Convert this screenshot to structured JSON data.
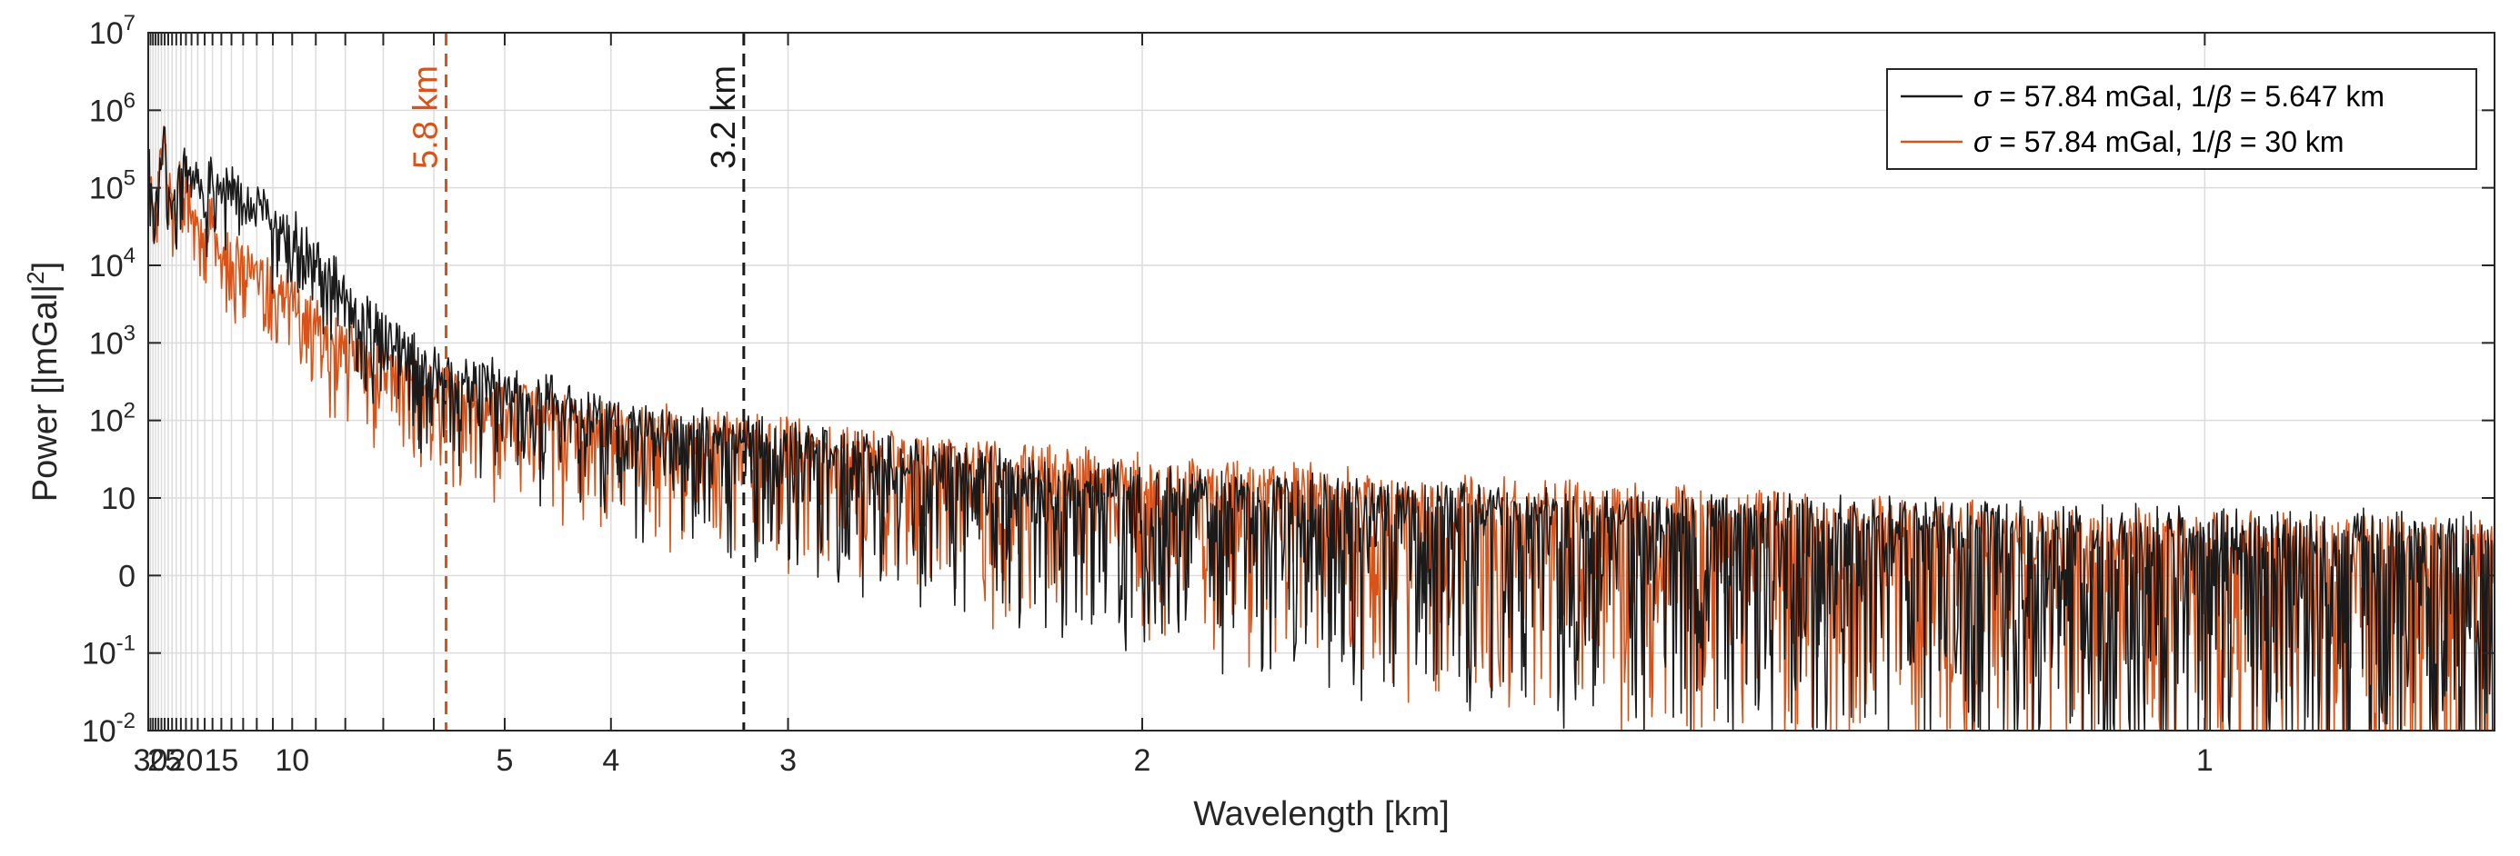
{
  "chart_data": {
    "type": "line",
    "title": "",
    "xlabel": "Wavelength [km]",
    "ylabel": "Power [|mGal|",
    "ylabel_superscript": "2",
    "ylabel_suffix": "]",
    "x_scale": "reciprocal (spatial frequency 1/λ)",
    "xlim": [
      31,
      0.88
    ],
    "x_ticks": [
      {
        "value": 30,
        "label": "30"
      },
      {
        "value": 25,
        "label": "25"
      },
      {
        "value": 20,
        "label": "20"
      },
      {
        "value": 15,
        "label": "15"
      },
      {
        "value": 10,
        "label": "10"
      },
      {
        "value": 5,
        "label": "5"
      },
      {
        "value": 4,
        "label": "4"
      },
      {
        "value": 3,
        "label": "3"
      },
      {
        "value": 2,
        "label": "2"
      },
      {
        "value": 1,
        "label": "1"
      }
    ],
    "x_minor_ticks": [
      29,
      28,
      27,
      26,
      24,
      23,
      22,
      21,
      19,
      18,
      17,
      16,
      14,
      13,
      12,
      11,
      9,
      8,
      7,
      6
    ],
    "y_scale": "log",
    "ylim_exponent": [
      -2,
      7
    ],
    "y_ticks": [
      {
        "exp": 7,
        "base": "10",
        "sup": "7"
      },
      {
        "exp": 6,
        "base": "10",
        "sup": "6"
      },
      {
        "exp": 5,
        "base": "10",
        "sup": "5"
      },
      {
        "exp": 4,
        "base": "10",
        "sup": "4"
      },
      {
        "exp": 3,
        "base": "10",
        "sup": "3"
      },
      {
        "exp": 2,
        "base": "10",
        "sup": "2"
      },
      {
        "exp": 1,
        "base": "10",
        "sup": ""
      },
      {
        "exp": 0,
        "base": "0",
        "sup": ""
      },
      {
        "exp": -1,
        "base": "10",
        "sup": "-1"
      },
      {
        "exp": -2,
        "base": "10",
        "sup": "-2"
      }
    ],
    "grid": true,
    "legend_position": "top-right",
    "series": [
      {
        "name": "σ = 57.84 mGal, 1/β = 5.647 km",
        "legend_parts": [
          "σ",
          " = 57.84 mGal, 1/",
          "β",
          " = 5.647 km"
        ],
        "color": "#1a1a1a",
        "note": "noisy power spectrum; approximate envelope (wavelength km, log10 power) sampled from the figure",
        "envelope": [
          [
            31,
            5.9
          ],
          [
            29,
            5.3
          ],
          [
            28,
            5.2
          ],
          [
            27,
            5.4
          ],
          [
            26,
            5.7
          ],
          [
            25,
            6.05
          ],
          [
            24,
            5.5
          ],
          [
            23,
            5.15
          ],
          [
            22,
            5.1
          ],
          [
            21,
            5.7
          ],
          [
            20,
            5.55
          ],
          [
            19,
            5.3
          ],
          [
            18,
            5.5
          ],
          [
            17,
            5.2
          ],
          [
            16,
            5.5
          ],
          [
            15,
            5.3
          ],
          [
            14,
            5.3
          ],
          [
            13,
            5.15
          ],
          [
            12,
            5.1
          ],
          [
            11,
            4.9
          ],
          [
            10,
            4.75
          ],
          [
            9,
            4.4
          ],
          [
            8,
            4.0
          ],
          [
            7,
            3.45
          ],
          [
            6,
            3.0
          ],
          [
            5,
            2.8
          ],
          [
            4.5,
            2.6
          ],
          [
            4,
            2.35
          ],
          [
            3.5,
            2.2
          ],
          [
            3,
            2.0
          ],
          [
            2.5,
            1.75
          ],
          [
            2,
            1.45
          ],
          [
            1.5,
            1.2
          ],
          [
            1.2,
            1.05
          ],
          [
            1,
            0.9
          ],
          [
            0.88,
            0.85
          ]
        ]
      },
      {
        "name": "σ = 57.84 mGal, 1/β = 30 km",
        "legend_parts": [
          "σ",
          " = 57.84 mGal, 1/",
          "β",
          " = 30 km"
        ],
        "color": "#d95319",
        "note": "noisy power spectrum; approximate envelope (wavelength km, log10 power) sampled from the figure",
        "envelope": [
          [
            31,
            5.85
          ],
          [
            29,
            5.1
          ],
          [
            28,
            5.05
          ],
          [
            27,
            5.3
          ],
          [
            26,
            5.65
          ],
          [
            25,
            6.0
          ],
          [
            24,
            5.35
          ],
          [
            23,
            5.0
          ],
          [
            22,
            4.95
          ],
          [
            21,
            5.6
          ],
          [
            20,
            5.4
          ],
          [
            19,
            4.9
          ],
          [
            18,
            4.95
          ],
          [
            17,
            4.7
          ],
          [
            16,
            4.95
          ],
          [
            15,
            4.55
          ],
          [
            14,
            4.4
          ],
          [
            13,
            4.35
          ],
          [
            12,
            4.2
          ],
          [
            11,
            4.1
          ],
          [
            10,
            3.95
          ],
          [
            9,
            3.6
          ],
          [
            8,
            3.3
          ],
          [
            7,
            3.05
          ],
          [
            6,
            2.75
          ],
          [
            5,
            2.5
          ],
          [
            4.5,
            2.45
          ],
          [
            4,
            2.3
          ],
          [
            3.5,
            2.2
          ],
          [
            3,
            2.05
          ],
          [
            2.5,
            1.85
          ],
          [
            2,
            1.6
          ],
          [
            1.5,
            1.3
          ],
          [
            1.2,
            1.05
          ],
          [
            1,
            0.85
          ],
          [
            0.88,
            0.75
          ]
        ]
      }
    ],
    "vertical_lines": [
      {
        "wavelength": 5.8,
        "label": "5.8 km",
        "color": "#d95319",
        "style": "dashed"
      },
      {
        "wavelength": 3.2,
        "label": "3.2 km",
        "color": "#1a1a1a",
        "style": "dashed"
      }
    ]
  }
}
